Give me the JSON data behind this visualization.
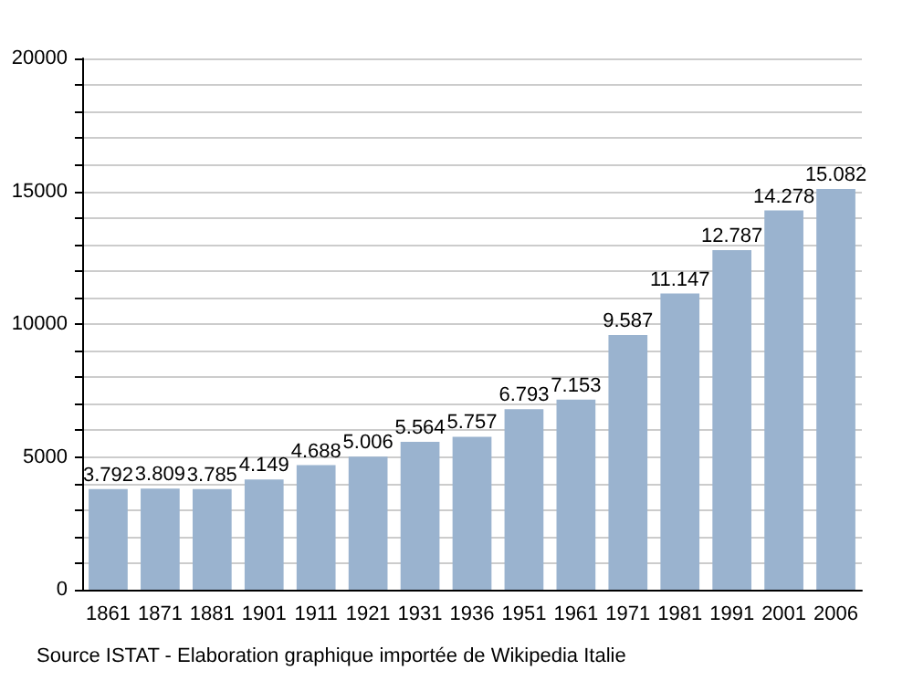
{
  "chart_data": {
    "type": "bar",
    "categories": [
      "1861",
      "1871",
      "1881",
      "1901",
      "1911",
      "1921",
      "1931",
      "1936",
      "1951",
      "1961",
      "1971",
      "1981",
      "1991",
      "2001",
      "2006"
    ],
    "values": [
      3792,
      3809,
      3785,
      4149,
      4688,
      5006,
      5564,
      5757,
      6793,
      7153,
      9587,
      11147,
      12787,
      14278,
      15082
    ],
    "value_labels": [
      "3.792",
      "3.809",
      "3.785",
      "4.149",
      "4.688",
      "5.006",
      "5.564",
      "5.757",
      "6.793",
      "7.153",
      "9.587",
      "11.147",
      "12.787",
      "14.278",
      "15.082"
    ],
    "color": "#9ab3cf",
    "ylim": [
      0,
      20000
    ],
    "yticks": [
      {
        "value": 0,
        "label": "0"
      },
      {
        "value": 1000,
        "label": null
      },
      {
        "value": 2000,
        "label": null
      },
      {
        "value": 3000,
        "label": null
      },
      {
        "value": 4000,
        "label": null
      },
      {
        "value": 5000,
        "label": "5000"
      },
      {
        "value": 6000,
        "label": null
      },
      {
        "value": 7000,
        "label": null
      },
      {
        "value": 8000,
        "label": null
      },
      {
        "value": 9000,
        "label": null
      },
      {
        "value": 10000,
        "label": "10000"
      },
      {
        "value": 11000,
        "label": null
      },
      {
        "value": 12000,
        "label": null
      },
      {
        "value": 13000,
        "label": null
      },
      {
        "value": 14000,
        "label": null
      },
      {
        "value": 15000,
        "label": "15000"
      },
      {
        "value": 16000,
        "label": null
      },
      {
        "value": 17000,
        "label": null
      },
      {
        "value": 18000,
        "label": null
      },
      {
        "value": 19000,
        "label": null
      },
      {
        "value": 20000,
        "label": "20000"
      }
    ],
    "grid": "y",
    "annotations": [
      "Source ISTAT - Elaboration graphique importée de Wikipedia Italie"
    ]
  }
}
